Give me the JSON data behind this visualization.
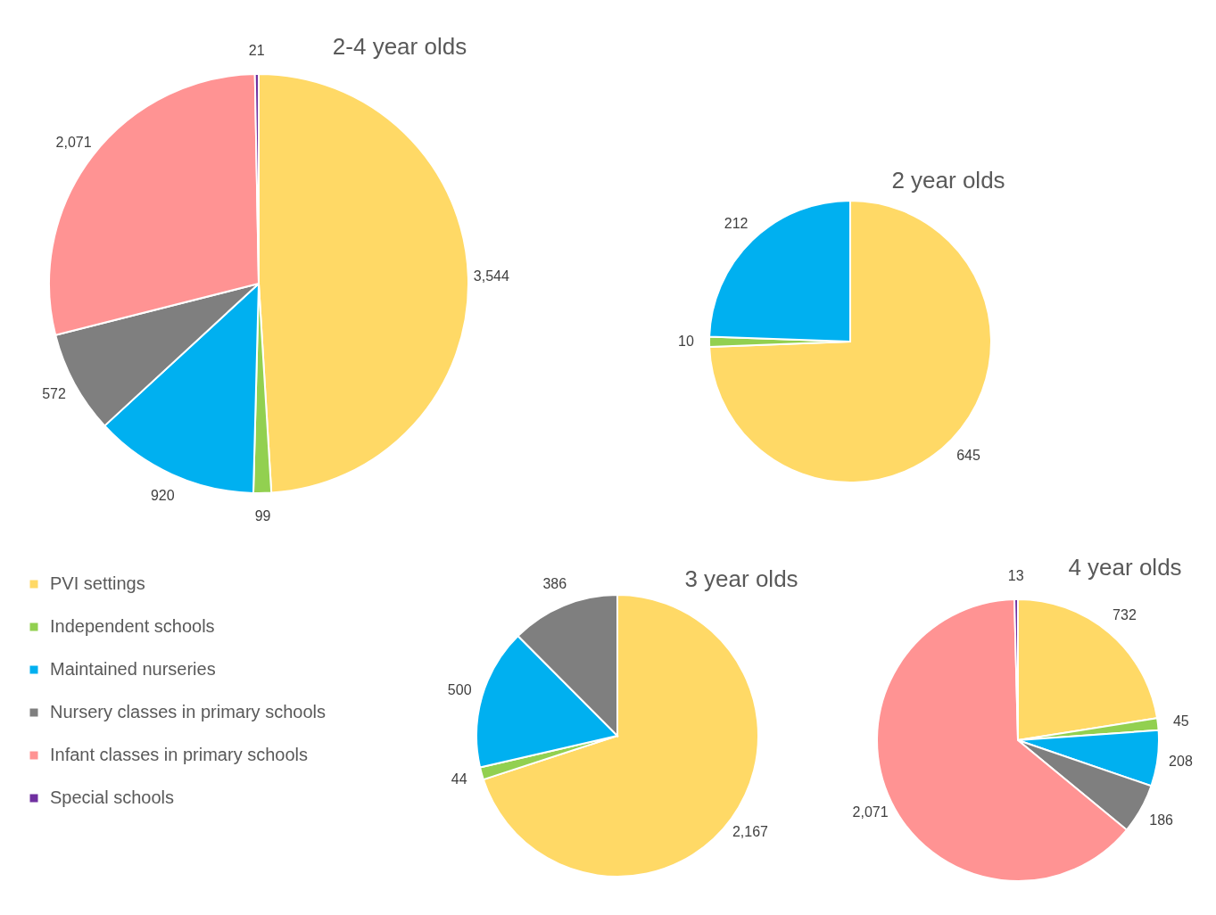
{
  "chart_data": {
    "type": "pie",
    "categories": [
      "PVI settings",
      "Independent schools",
      "Maintained nurseries",
      "Nursery classes in primary schools",
      "Infant classes in primary schools",
      "Special schools"
    ],
    "colors": [
      "#ffd966",
      "#92d050",
      "#00b0f0",
      "#7f7f7f",
      "#ff9393",
      "#7030a0"
    ],
    "series": [
      {
        "name": "2-4 year olds",
        "values": [
          3544,
          99,
          920,
          572,
          2071,
          21
        ],
        "value_labels": [
          "3,544",
          "99",
          "920",
          "572",
          "2,071",
          "21"
        ]
      },
      {
        "name": "2 year olds",
        "values": [
          645,
          10,
          212,
          null,
          null,
          null
        ],
        "value_labels": [
          "645",
          "10",
          "212",
          null,
          null,
          null
        ]
      },
      {
        "name": "3 year olds",
        "values": [
          2167,
          44,
          500,
          386,
          null,
          null
        ],
        "value_labels": [
          "2,167",
          "44",
          "500",
          "386",
          null,
          null
        ]
      },
      {
        "name": "4 year olds",
        "values": [
          732,
          45,
          208,
          186,
          2071,
          13
        ],
        "value_labels": [
          "732",
          "45",
          "208",
          "186",
          "2,071",
          "13"
        ]
      }
    ],
    "legend": "bottom left"
  }
}
